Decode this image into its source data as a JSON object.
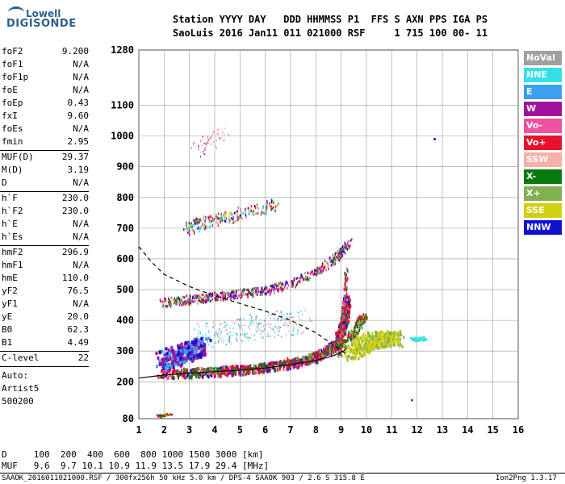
{
  "logo": {
    "line1": "Lowell",
    "line2": "DIGISONDE"
  },
  "header": {
    "row1": "Station YYYY DAY   DDD HHMMSS P1  FFS S AXN PPS IGA PS",
    "row2": "SaoLuis 2016 Jan11 011 021000 RSF     1 715 100 00- 11"
  },
  "params_group1": [
    {
      "label": "foF2",
      "value": "9.200"
    },
    {
      "label": "foF1",
      "value": "N/A"
    },
    {
      "label": "foF1p",
      "value": "N/A"
    },
    {
      "label": "foE",
      "value": "N/A"
    },
    {
      "label": "foEp",
      "value": "0.43"
    },
    {
      "label": "fxI",
      "value": "9.60"
    },
    {
      "label": "foEs",
      "value": "N/A"
    },
    {
      "label": "fmin",
      "value": "2.95"
    }
  ],
  "params_group2": [
    {
      "label": "MUF(D)",
      "value": "29.37"
    },
    {
      "label": "M(D)",
      "value": "3.19"
    },
    {
      "label": "D",
      "value": "N/A"
    }
  ],
  "params_group3": [
    {
      "label": "h`F",
      "value": "230.0"
    },
    {
      "label": "h`F2",
      "value": "230.0"
    },
    {
      "label": "h`E",
      "value": "N/A"
    },
    {
      "label": "h`Es",
      "value": "N/A"
    }
  ],
  "params_group4": [
    {
      "label": "hmF2",
      "value": "296.9"
    },
    {
      "label": "hmF1",
      "value": "N/A"
    },
    {
      "label": "hmE",
      "value": "110.0"
    },
    {
      "label": "yF2",
      "value": "76.5"
    },
    {
      "label": "yF1",
      "value": "N/A"
    },
    {
      "label": "yE",
      "value": "20.0"
    },
    {
      "label": "B0",
      "value": "62.3"
    },
    {
      "label": "B1",
      "value": "4.49"
    }
  ],
  "clevel": {
    "label": "C-level",
    "value": "22"
  },
  "auto_lines": [
    "Auto:",
    "Artist5",
    "500200"
  ],
  "legend": [
    {
      "label": "NoVal",
      "color": "#a0a0a0"
    },
    {
      "label": "NNE",
      "color": "#33e0e8"
    },
    {
      "label": "E",
      "color": "#3aa0f0"
    },
    {
      "label": "W",
      "color": "#a0109c"
    },
    {
      "label": "Vo-",
      "color": "#f050a0"
    },
    {
      "label": "Vo+",
      "color": "#e8102c"
    },
    {
      "label": "SSW",
      "color": "#f5b0a8"
    },
    {
      "label": "X-",
      "color": "#0a7a10"
    },
    {
      "label": "X+",
      "color": "#80b050"
    },
    {
      "label": "SSE",
      "color": "#d0d010"
    },
    {
      "label": "NNW",
      "color": "#1010d0"
    }
  ],
  "muf_table": {
    "row1": "D     100  200  400  600  800 1000 1500 3000 [km]",
    "row2": "MUF   9.6  9.7 10.1 10.9 11.9 13.5 17.9 29.4 [MHz]"
  },
  "footer": {
    "left": "SAAOK_2016011021000.RSF / 300fx256h 50 kHz 5.0 km / DPS-4 SAAOK 903 / 2.6 S 315.8 E",
    "right": "Ion2Png 1.3.17"
  },
  "chart_data": {
    "type": "scatter",
    "title": "",
    "xlabel": "",
    "ylabel": "",
    "xlim": [
      1,
      16
    ],
    "ylim": [
      80,
      1280
    ],
    "x_ticks": [
      1,
      2,
      3,
      4,
      5,
      6,
      7,
      8,
      9,
      10,
      11,
      12,
      13,
      14,
      15,
      16
    ],
    "y_ticks": [
      80,
      200,
      300,
      400,
      500,
      600,
      700,
      800,
      900,
      1000,
      1100,
      1280
    ],
    "grid": true,
    "traces": [
      {
        "name": "F2 trace ordinary",
        "points": [
          [
            1.8,
            230
          ],
          [
            3,
            232
          ],
          [
            4,
            236
          ],
          [
            5,
            242
          ],
          [
            6,
            250
          ],
          [
            7,
            262
          ],
          [
            7.8,
            278
          ],
          [
            8.4,
            300
          ],
          [
            8.8,
            330
          ],
          [
            9.0,
            370
          ],
          [
            9.15,
            420
          ],
          [
            9.2,
            470
          ]
        ]
      },
      {
        "name": "F2 trace extraordinary",
        "points": [
          [
            2.3,
            235
          ],
          [
            4,
            240
          ],
          [
            6,
            252
          ],
          [
            8,
            290
          ],
          [
            9.2,
            330
          ],
          [
            9.6,
            380
          ],
          [
            9.9,
            420
          ]
        ]
      },
      {
        "name": "F2 multi-hop",
        "points": [
          [
            1.9,
            460
          ],
          [
            3,
            470
          ],
          [
            4,
            480
          ],
          [
            5,
            490
          ],
          [
            6,
            500
          ],
          [
            7,
            520
          ],
          [
            8,
            560
          ],
          [
            8.8,
            610
          ],
          [
            9.3,
            660
          ]
        ]
      },
      {
        "name": "F2 third-hop",
        "points": [
          [
            2.8,
            700
          ],
          [
            3.5,
            720
          ],
          [
            4.5,
            740
          ],
          [
            5.5,
            760
          ],
          [
            6.5,
            780
          ]
        ]
      }
    ],
    "profile_curves": {
      "solid_black": [
        [
          1,
          212
        ],
        [
          2,
          222
        ],
        [
          3,
          228
        ],
        [
          4,
          233
        ],
        [
          5,
          238
        ],
        [
          6,
          245
        ],
        [
          7,
          256
        ],
        [
          8,
          270
        ],
        [
          8.7,
          285
        ],
        [
          9.1,
          300
        ],
        [
          9.2,
          310
        ]
      ],
      "dashed_black": [
        [
          1,
          640
        ],
        [
          1.5,
          590
        ],
        [
          2,
          550
        ],
        [
          3,
          510
        ],
        [
          4,
          480
        ],
        [
          5,
          455
        ],
        [
          6,
          430
        ],
        [
          7,
          400
        ],
        [
          8,
          360
        ],
        [
          8.7,
          320
        ],
        [
          9.2,
          290
        ]
      ]
    }
  }
}
